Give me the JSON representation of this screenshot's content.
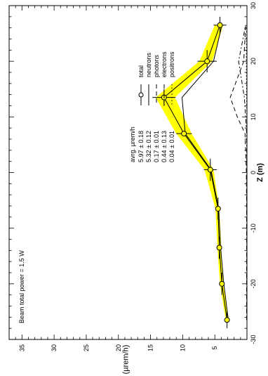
{
  "chart_data": {
    "type": "line",
    "orientation": "rotated-90",
    "xlabel": "Z (m)",
    "ylabel": "H (µrem/h)",
    "xlim": [
      -30,
      30
    ],
    "ylim": [
      0,
      37
    ],
    "x_ticks": [
      -30,
      -20,
      -10,
      0,
      10,
      20,
      30
    ],
    "y_ticks": [
      5,
      10,
      15,
      20,
      25,
      30,
      35
    ],
    "annotation": "Beam total power = 1.5 W",
    "legend_header": "avrg. µrem/h",
    "legend_position": "top-right",
    "legend": [
      {
        "value": "5.97 ± 0.18",
        "name": "total",
        "style": "circle-line"
      },
      {
        "value": "5.32 ± 0.12",
        "name": "neutrons",
        "style": "solid"
      },
      {
        "value": "0.17 ± 0.01",
        "name": "photons",
        "style": "dashed"
      },
      {
        "value": "0.44 ± 0.13",
        "name": "electrons",
        "style": "dash-dot"
      },
      {
        "value": "0.04 ± 0.01",
        "name": "positrons",
        "style": "dotted"
      }
    ],
    "series": [
      {
        "name": "total",
        "x": [
          -26.5,
          -20,
          -13.5,
          -6.5,
          0.5,
          7,
          13.5,
          20,
          26.5
        ],
        "y": [
          3.1,
          3.9,
          4.3,
          4.5,
          5.7,
          9.8,
          12.9,
          6.2,
          4.2
        ],
        "x_err": [
          1.5,
          2,
          2,
          2,
          2,
          0,
          1.5,
          2,
          1.5
        ],
        "y_err": [
          0.4,
          0.3,
          0.3,
          0.4,
          1.0,
          1.2,
          1.8,
          1.5,
          1.0
        ]
      },
      {
        "name": "neutrons",
        "x": [
          -26.5,
          -20,
          -13.5,
          -6.5,
          0.5,
          7,
          13.5,
          20,
          26.5
        ],
        "y": [
          2.9,
          3.6,
          4.1,
          4.4,
          5.6,
          9.6,
          10.1,
          5.2,
          3.9
        ]
      },
      {
        "name": "photons",
        "x": [
          -26.5,
          -20,
          -13.5,
          -6.5,
          0.5,
          7,
          10,
          13.5,
          20,
          26.5
        ],
        "y": [
          0.05,
          0.05,
          0.05,
          0.05,
          0.1,
          0.3,
          1.5,
          2.6,
          0.5,
          0.2
        ]
      },
      {
        "name": "electrons",
        "x": [
          -26.5,
          -20,
          -13.5,
          -6.5,
          0.5,
          7,
          13.5,
          20,
          26.5
        ],
        "y": [
          0.02,
          0.02,
          0.02,
          0.02,
          0.03,
          0.05,
          0.4,
          1.3,
          0.2
        ]
      },
      {
        "name": "positrons",
        "x": [
          -26.5,
          -20,
          -13.5,
          -6.5,
          0.5,
          7,
          13.5,
          20,
          26.5
        ],
        "y": [
          0.01,
          0.01,
          0.01,
          0.01,
          0.01,
          0.02,
          0.05,
          0.1,
          0.05
        ]
      }
    ],
    "band": {
      "x": [
        -26.5,
        -20,
        -13.5,
        -6.5,
        0.5,
        7,
        13.5,
        20,
        26.5
      ],
      "lower": [
        2.8,
        3.7,
        4.0,
        4.3,
        5.2,
        8.6,
        11.2,
        5.4,
        3.7
      ],
      "upper": [
        3.3,
        4.2,
        4.6,
        4.9,
        6.6,
        11.0,
        14.2,
        7.4,
        5.0
      ]
    },
    "colors": {
      "band": "#ffff00",
      "lines": "#000000",
      "marker_fill": "#ffff00"
    }
  }
}
